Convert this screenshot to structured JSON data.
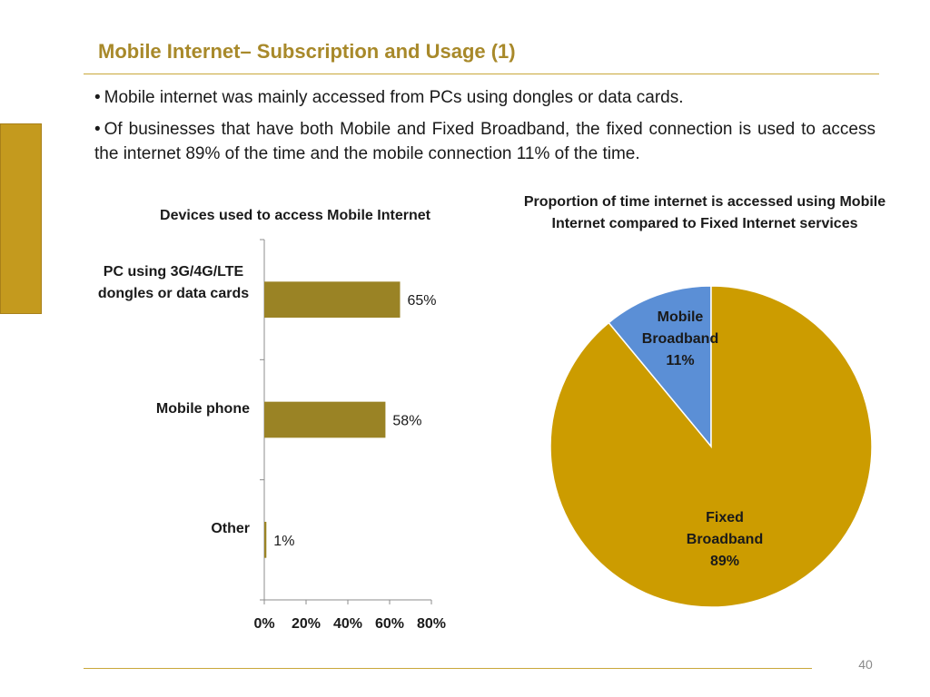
{
  "slide": {
    "title": "Mobile Internet–  Subscription and Usage (1)",
    "bullets": [
      "Mobile internet was mainly accessed from PCs using dongles or data cards.",
      "Of businesses that have both Mobile and Fixed Broadband, the fixed connection is used to access the internet 89% of the time  and the mobile connection 11% of the time."
    ],
    "page_number": "40"
  },
  "chart_data": [
    {
      "type": "bar",
      "orientation": "horizontal",
      "title": "Devices used to access Mobile Internet",
      "categories": [
        "PC using 3G/4G/LTE dongles or data cards",
        "Mobile phone",
        "Other"
      ],
      "values": [
        65,
        58,
        1
      ],
      "data_labels": [
        "65%",
        "58%",
        "1%"
      ],
      "xlim": [
        0,
        80
      ],
      "x_ticks": [
        "0%",
        "20%",
        "40%",
        "60%",
        "80%"
      ],
      "grid": false,
      "color": "#9a8325"
    },
    {
      "type": "pie",
      "title": "Proportion of time internet is accessed using Mobile Internet compared to Fixed Internet services",
      "slices": [
        {
          "label": "Mobile Broadband",
          "value": 11,
          "value_label": "11%",
          "color": "#5b8fd6"
        },
        {
          "label": "Fixed Broadband",
          "value": 89,
          "value_label": "89%",
          "color": "#cc9c00"
        }
      ]
    }
  ]
}
